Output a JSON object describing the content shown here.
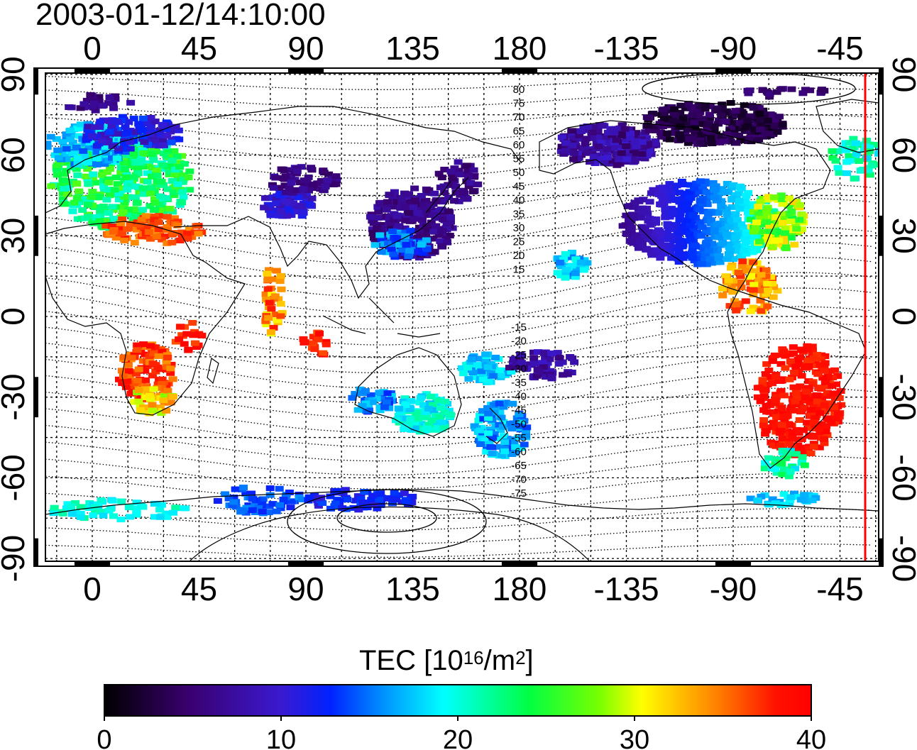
{
  "timestamp": "2003-01-12/14:10:00",
  "map": {
    "lon_ticks": [
      "0",
      "45",
      "90",
      "135",
      "180",
      "-135",
      "-90",
      "-45"
    ],
    "lat_ticks": [
      "90",
      "60",
      "30",
      "0",
      "-30",
      "-60",
      "-90"
    ],
    "contour_labels_north": [
      "80",
      "75",
      "70",
      "65",
      "60",
      "55",
      "50",
      "45",
      "40",
      "35",
      "30",
      "25",
      "20",
      "15"
    ],
    "contour_labels_south": [
      "-15",
      "-20",
      "-25",
      "-30",
      "-35",
      "-40",
      "-45",
      "-50",
      "-55",
      "-60",
      "-65",
      "-70",
      "-75"
    ],
    "gridlines": "dotted",
    "terminator_color": "#ff0000"
  },
  "colorbar": {
    "title_prefix": "TEC  [10",
    "title_exp1": "16",
    "title_mid": "/m",
    "title_exp2": "2",
    "title_suffix": "]",
    "ticks": [
      "0",
      "10",
      "20",
      "30",
      "40"
    ],
    "range": [
      0,
      40
    ],
    "colormap": [
      "#000000",
      "#4b0082",
      "#0000ff",
      "#00ffff",
      "#00ff00",
      "#ffff00",
      "#ff8000",
      "#ff0000"
    ]
  }
}
